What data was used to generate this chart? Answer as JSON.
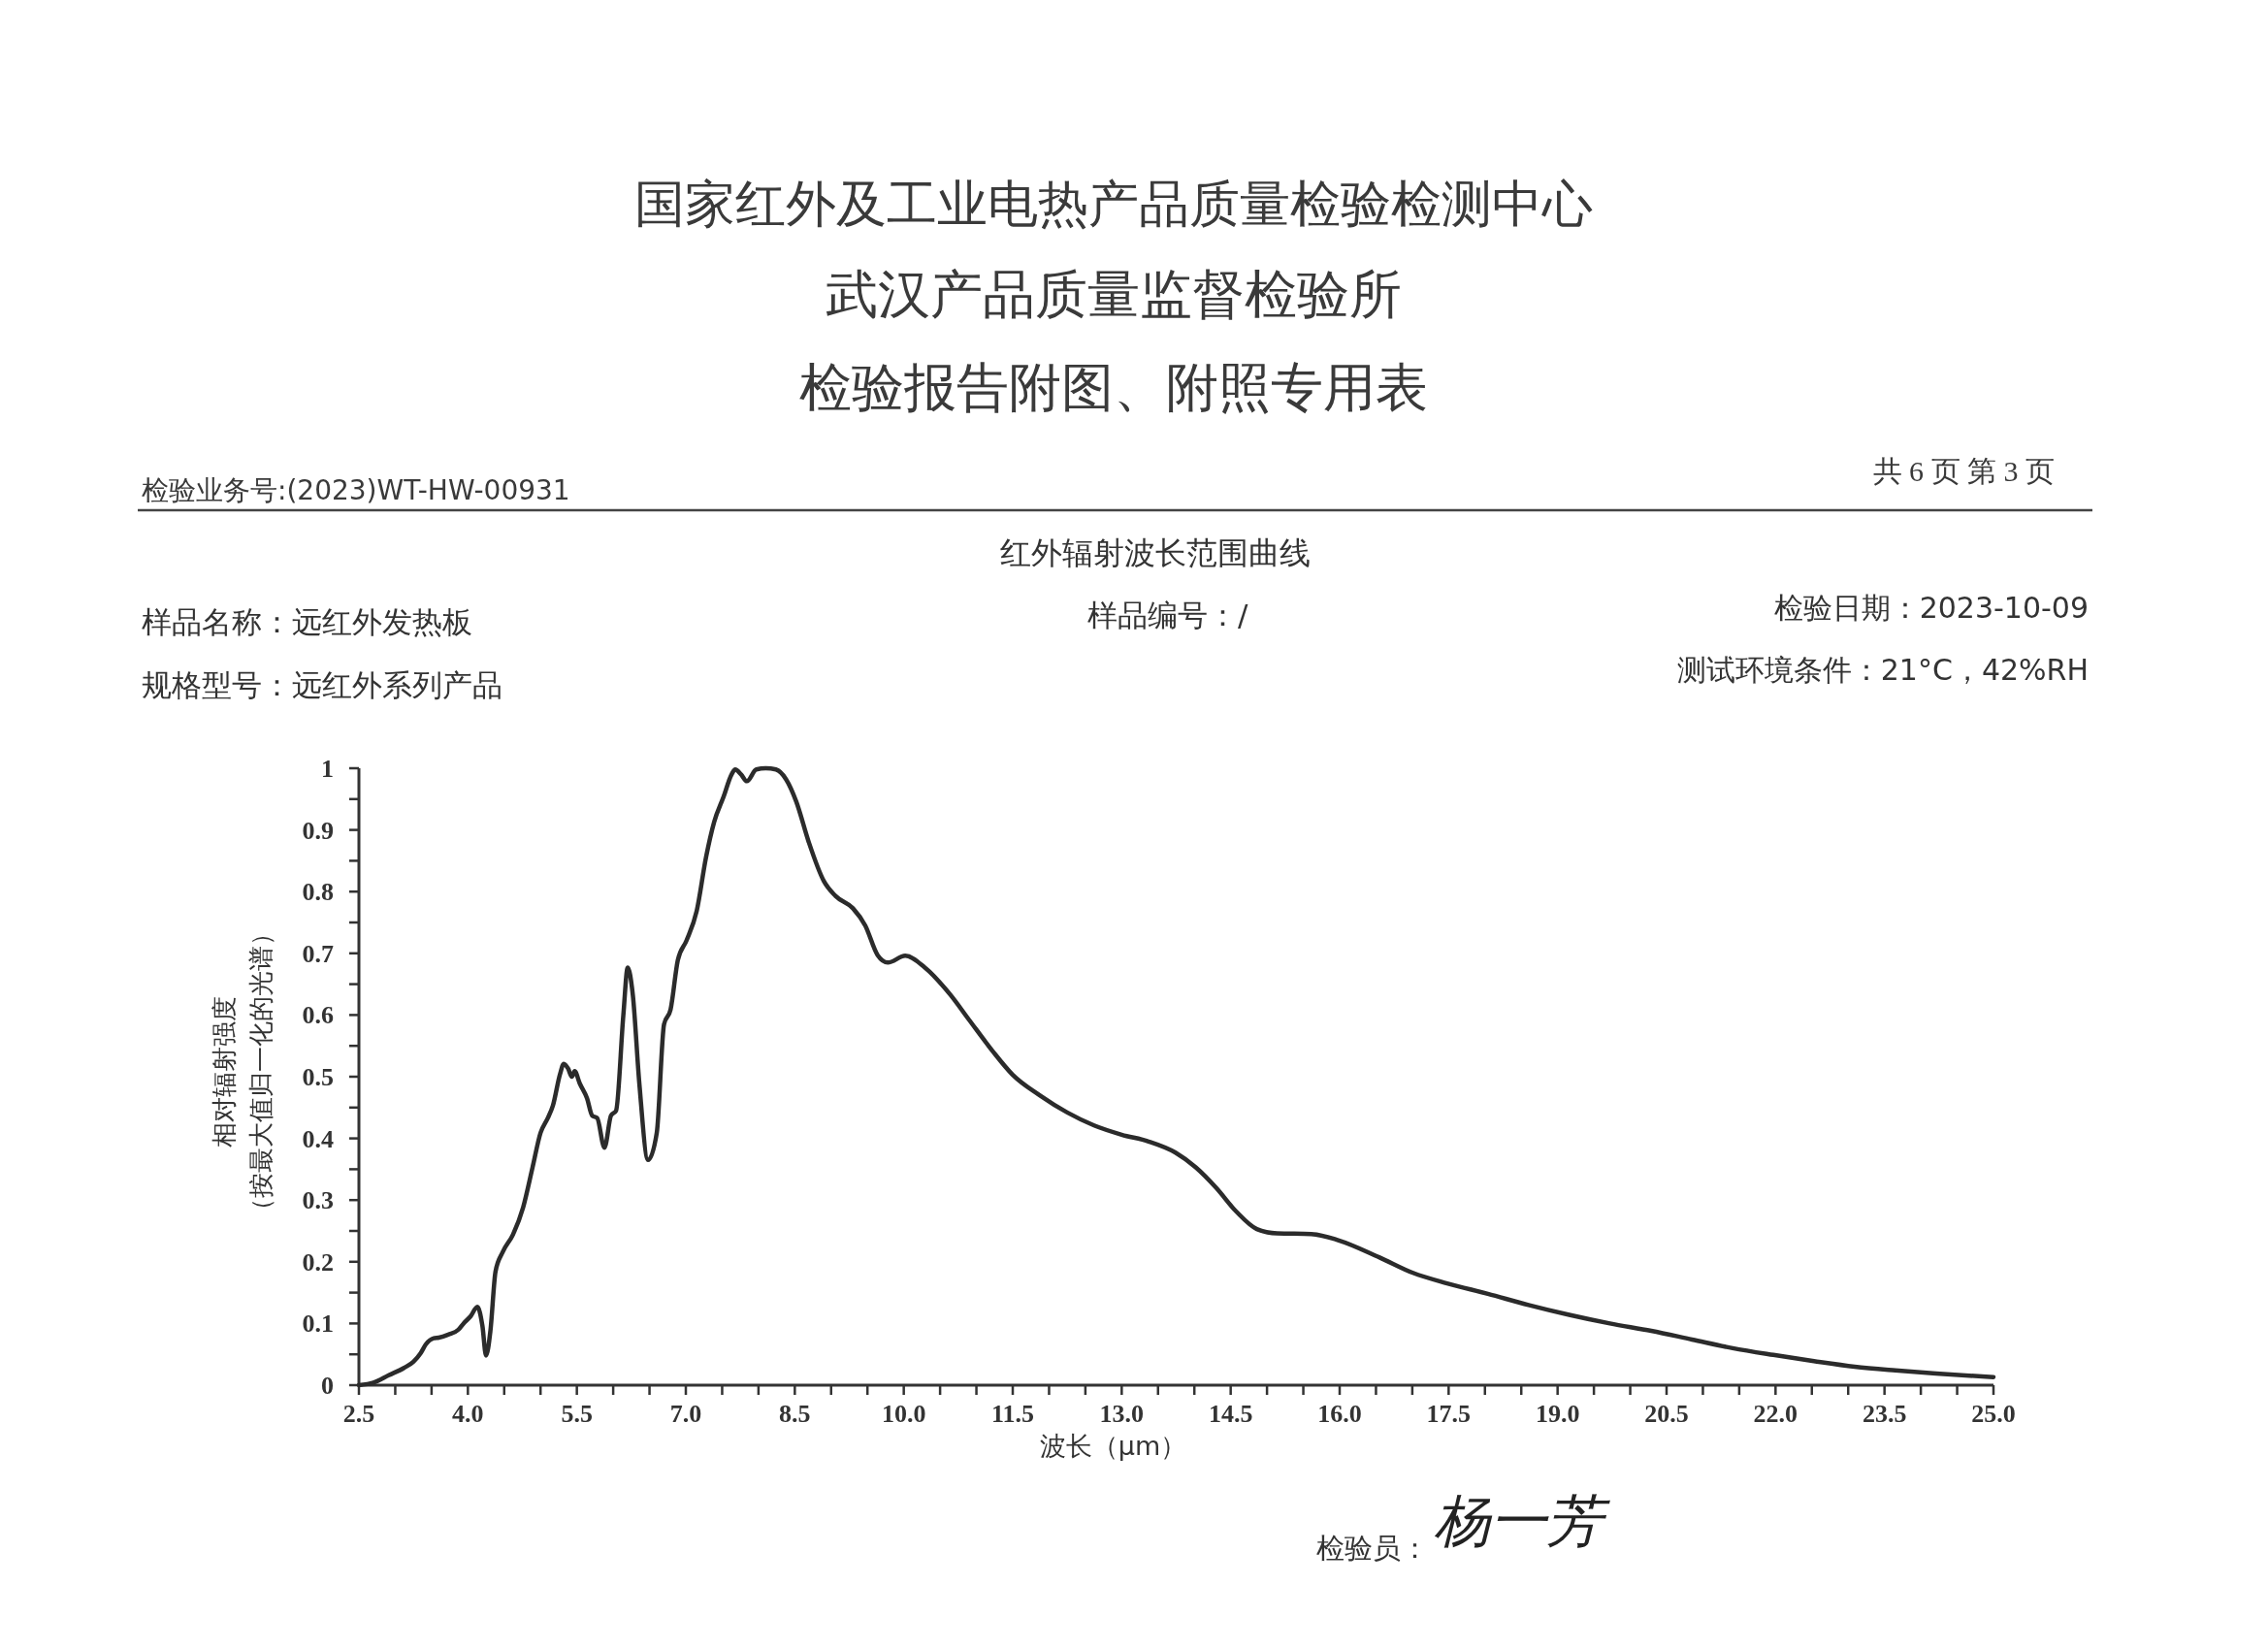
{
  "chart_data": {
    "type": "line",
    "title": "红外辐射波长范围曲线",
    "xlabel": "波长（μm）",
    "ylabel": "相对辐射强度（按最大值归一化的光谱）",
    "color": "#2b2b2b",
    "x": [
      2.5,
      2.7,
      2.91,
      3.12,
      3.25,
      3.35,
      3.42,
      3.53,
      3.6,
      3.73,
      3.87,
      3.94,
      4.04,
      4.13,
      4.2,
      4.25,
      4.31,
      4.38,
      4.48,
      4.62,
      4.76,
      4.89,
      5.0,
      5.1,
      5.17,
      5.27,
      5.32,
      5.38,
      5.43,
      5.47,
      5.54,
      5.64,
      5.71,
      5.78,
      5.88,
      5.97,
      6.04,
      6.14,
      6.2,
      6.27,
      6.36,
      6.48,
      6.6,
      6.7,
      6.79,
      6.89,
      7.01,
      7.15,
      7.28,
      7.39,
      7.52,
      7.63,
      7.68,
      7.76,
      7.84,
      7.97,
      8.1,
      8.24,
      8.38,
      8.52,
      8.69,
      8.9,
      9.06,
      9.3,
      9.47,
      9.64,
      9.78,
      10.02,
      10.29,
      10.64,
      10.9,
      11.22,
      11.5,
      11.87,
      12.25,
      12.62,
      13.0,
      13.37,
      13.74,
      14.02,
      14.3,
      14.58,
      14.86,
      15.14,
      15.61,
      15.98,
      16.55,
      17.01,
      17.48,
      18.04,
      18.6,
      19.16,
      19.72,
      20.29,
      20.85,
      21.41,
      21.97,
      22.53,
      23.09,
      23.65,
      24.21,
      25.0
    ],
    "values": [
      0,
      0.004,
      0.016,
      0.028,
      0.038,
      0.052,
      0.066,
      0.076,
      0.077,
      0.082,
      0.09,
      0.1,
      0.112,
      0.127,
      0.096,
      0.048,
      0.088,
      0.184,
      0.216,
      0.244,
      0.288,
      0.353,
      0.409,
      0.433,
      0.453,
      0.505,
      0.521,
      0.513,
      0.5,
      0.509,
      0.489,
      0.465,
      0.437,
      0.433,
      0.385,
      0.437,
      0.445,
      0.6,
      0.677,
      0.633,
      0.489,
      0.365,
      0.409,
      0.585,
      0.609,
      0.689,
      0.721,
      0.769,
      0.857,
      0.913,
      0.954,
      0.99,
      0.998,
      0.99,
      0.979,
      0.998,
      1.0,
      0.998,
      0.982,
      0.946,
      0.881,
      0.817,
      0.793,
      0.773,
      0.745,
      0.697,
      0.685,
      0.696,
      0.677,
      0.633,
      0.592,
      0.542,
      0.503,
      0.47,
      0.442,
      0.421,
      0.406,
      0.395,
      0.377,
      0.353,
      0.32,
      0.281,
      0.253,
      0.246,
      0.245,
      0.235,
      0.207,
      0.182,
      0.165,
      0.148,
      0.13,
      0.114,
      0.1,
      0.088,
      0.074,
      0.06,
      0.049,
      0.039,
      0.03,
      0.024,
      0.019,
      0.013
    ],
    "xlim": [
      2.5,
      25.0
    ],
    "ylim": [
      0,
      1
    ],
    "xticks": [
      2.5,
      {
        "value": 3,
        "label": null
      },
      {
        "value": 3.5,
        "label": null
      },
      {
        "value": 4,
        "label": "4.0"
      },
      {
        "value": 4.5,
        "label": null
      },
      {
        "value": 5,
        "label": null
      },
      5.5,
      {
        "value": 6,
        "label": null
      },
      {
        "value": 6.5,
        "label": null
      },
      {
        "value": 7,
        "label": "7.0"
      },
      {
        "value": 7.5,
        "label": null
      },
      {
        "value": 8,
        "label": null
      },
      8.5,
      {
        "value": 9,
        "label": null
      },
      {
        "value": 9.5,
        "label": null
      },
      {
        "value": 10,
        "label": "10.0"
      },
      {
        "value": 10.5,
        "label": null
      },
      {
        "value": 11,
        "label": null
      },
      11.5,
      {
        "value": 12,
        "label": null
      },
      {
        "value": 12.5,
        "label": null
      },
      {
        "value": 13,
        "label": "13.0"
      },
      {
        "value": 13.5,
        "label": null
      },
      {
        "value": 14,
        "label": null
      },
      14.5,
      {
        "value": 15,
        "label": null
      },
      {
        "value": 15.5,
        "label": null
      },
      {
        "value": 16,
        "label": "16.0"
      },
      {
        "value": 16.5,
        "label": null
      },
      {
        "value": 17,
        "label": null
      },
      17.5,
      {
        "value": 18,
        "label": null
      },
      {
        "value": 18.5,
        "label": null
      },
      {
        "value": 19,
        "label": "19.0"
      },
      {
        "value": 19.5,
        "label": null
      },
      {
        "value": 20,
        "label": null
      },
      20.5,
      {
        "value": 21,
        "label": null
      },
      {
        "value": 21.5,
        "label": null
      },
      {
        "value": 22,
        "label": "22.0"
      },
      {
        "value": 22.5,
        "label": null
      },
      {
        "value": 23,
        "label": null
      },
      23.5,
      {
        "value": 24,
        "label": null
      },
      {
        "value": 24.5,
        "label": null
      },
      {
        "value": 25,
        "label": "25.0"
      }
    ],
    "yticks": [
      0,
      {
        "value": 0.05,
        "label": null
      },
      0.1,
      {
        "value": 0.15,
        "label": null
      },
      0.2,
      {
        "value": 0.25,
        "label": null
      },
      0.3,
      {
        "value": 0.35,
        "label": null
      },
      0.4,
      {
        "value": 0.45,
        "label": null
      },
      0.5,
      {
        "value": 0.55,
        "label": null
      },
      0.6,
      {
        "value": 0.65,
        "label": null
      },
      0.7,
      {
        "value": 0.75,
        "label": null
      },
      0.8,
      {
        "value": 0.85,
        "label": null
      },
      0.9,
      {
        "value": 0.95,
        "label": null
      },
      1
    ],
    "annotations": [
      "国家红外及工业电热产品质量检验检测中心",
      "武汉产品质量监督检验所",
      "检验报告附图、附照专用表",
      "检验业务号:(2023)WT-HW-00931",
      "共 6 页 第 3 页",
      "样品名称：远红外发热板",
      "样品编号：/",
      "检验日期：2023-10-09",
      "规格型号：远红外系列产品",
      "测试环境条件：21°C，42%RH",
      "检验员：",
      "杨一芳"
    ]
  }
}
